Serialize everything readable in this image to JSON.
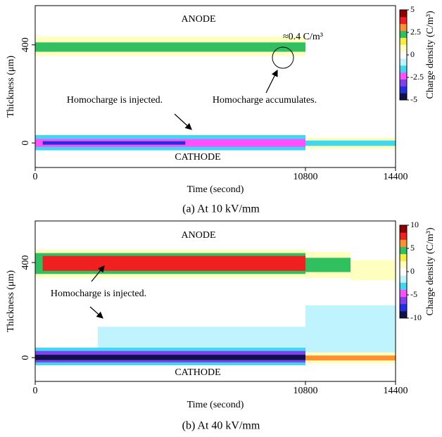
{
  "chart_data": [
    {
      "type": "heatmap",
      "caption": "(a) At 10 kV/mm",
      "xlabel": "Time (second)",
      "ylabel": "Thickness (μm)",
      "colorbar_label": "Charge density (C/m³)",
      "xlim": [
        0,
        14400
      ],
      "xticks": [
        0,
        10800,
        14400
      ],
      "ylim": [
        -100,
        560
      ],
      "yticks": [
        0,
        400
      ],
      "clim": [
        -5,
        5
      ],
      "cticks": [
        5,
        2.5,
        0,
        -2.5,
        -5
      ],
      "colors": [
        "#10104a",
        "#2030e0",
        "#8040f0",
        "#ff50ff",
        "#40d8f0",
        "#bff4ff",
        "#ffffff",
        "#ffffc0",
        "#f4f040",
        "#30c060",
        "#ff9030",
        "#f02020",
        "#900000"
      ],
      "cells": [
        {
          "x": [
            0,
            10800
          ],
          "y": [
            355,
            435
          ],
          "value": 1
        },
        {
          "x": [
            0,
            10800
          ],
          "y": [
            372,
            410
          ],
          "value": 2
        },
        {
          "x": [
            10800,
            14400
          ],
          "y": [
            370,
            430
          ],
          "value": 0.3
        },
        {
          "x": [
            0,
            10800
          ],
          "y": [
            -30,
            32
          ],
          "value": -1.5
        },
        {
          "x": [
            0,
            10800
          ],
          "y": [
            -16,
            16
          ],
          "value": -2.5
        },
        {
          "x": [
            300,
            6000
          ],
          "y": [
            -7,
            7
          ],
          "value": -3.5
        },
        {
          "x": [
            10800,
            14400
          ],
          "y": [
            -25,
            22
          ],
          "value": 1
        },
        {
          "x": [
            10800,
            14400
          ],
          "y": [
            -12,
            10
          ],
          "value": -1.6
        }
      ],
      "annotations": [
        "ANODE",
        "CATHODE",
        "≈0.4 C/m³",
        "Homocharge is injected.",
        "Homocharge accumulates."
      ]
    },
    {
      "type": "heatmap",
      "caption": "(b) At 40 kV/mm",
      "xlabel": "Time (second)",
      "ylabel": "Thickness (μm)",
      "colorbar_label": "Charge density (C/m³)",
      "xlim": [
        0,
        14400
      ],
      "xticks": [
        0,
        10800,
        14400
      ],
      "ylim": [
        -100,
        575
      ],
      "yticks": [
        0,
        400
      ],
      "clim": [
        -10,
        10
      ],
      "cticks": [
        10,
        5,
        0,
        -5,
        -10
      ],
      "colors": [
        "#10104a",
        "#2030e0",
        "#8040f0",
        "#ff50ff",
        "#40d8f0",
        "#bff4ff",
        "#ffffff",
        "#ffffc0",
        "#f4f040",
        "#30c060",
        "#ff9030",
        "#f02020",
        "#900000"
      ],
      "cells": [
        {
          "x": [
            2500,
            10800
          ],
          "y": [
            20,
            130
          ],
          "value": -1
        },
        {
          "x": [
            10800,
            14400
          ],
          "y": [
            20,
            220
          ],
          "value": -1
        },
        {
          "x": [
            0,
            10800
          ],
          "y": [
            335,
            455
          ],
          "value": 1.5
        },
        {
          "x": [
            0,
            10800
          ],
          "y": [
            352,
            440
          ],
          "value": 4
        },
        {
          "x": [
            300,
            10800
          ],
          "y": [
            365,
            428
          ],
          "value": 8
        },
        {
          "x": [
            10800,
            12600
          ],
          "y": [
            335,
            445
          ],
          "value": 1.5
        },
        {
          "x": [
            10800,
            12600
          ],
          "y": [
            360,
            420
          ],
          "value": 4
        },
        {
          "x": [
            12600,
            14400
          ],
          "y": [
            325,
            410
          ],
          "value": 1.5
        },
        {
          "x": [
            0,
            10800
          ],
          "y": [
            -32,
            42
          ],
          "value": -2.5
        },
        {
          "x": [
            0,
            10800
          ],
          "y": [
            -20,
            28
          ],
          "value": -6
        },
        {
          "x": [
            0,
            10800
          ],
          "y": [
            -10,
            12
          ],
          "value": -9
        },
        {
          "x": [
            10800,
            14400
          ],
          "y": [
            -25,
            22
          ],
          "value": 1.5
        },
        {
          "x": [
            10800,
            14400
          ],
          "y": [
            -12,
            9
          ],
          "value": 6
        }
      ],
      "annotations": [
        "ANODE",
        "CATHODE",
        "Homocharge is injected."
      ]
    }
  ]
}
